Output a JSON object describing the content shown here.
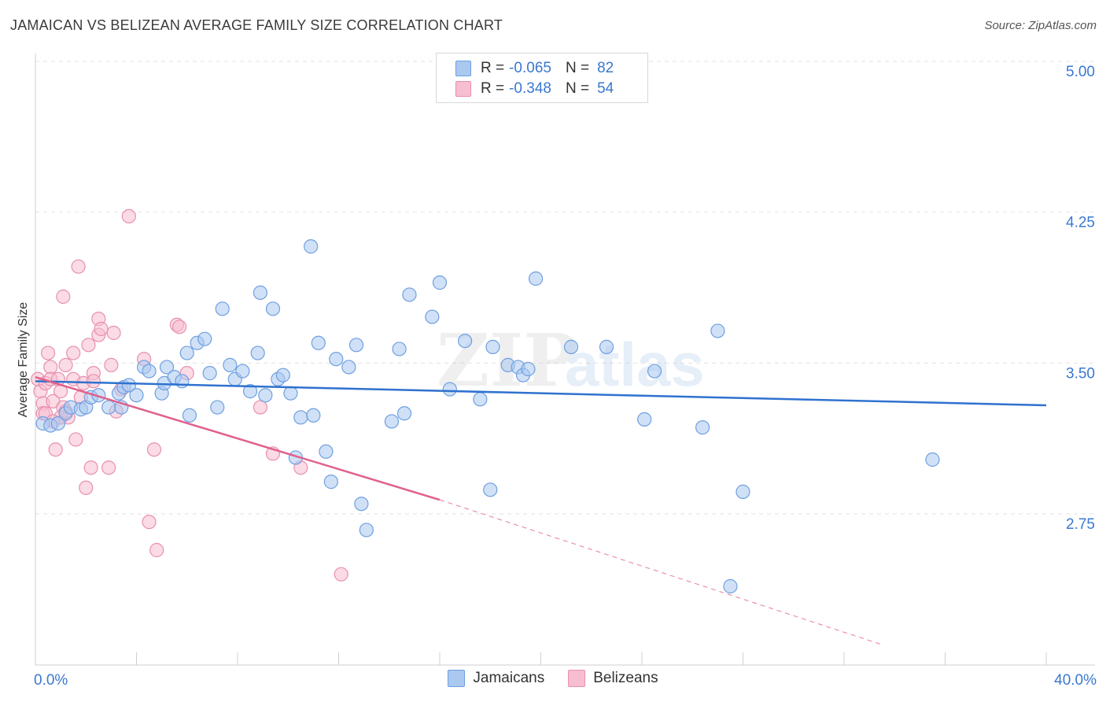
{
  "title": "JAMAICAN VS BELIZEAN AVERAGE FAMILY SIZE CORRELATION CHART",
  "source": "Source: ZipAtlas.com",
  "watermark": {
    "zip": "ZIP",
    "atlas": "atlas"
  },
  "legend": {
    "r_label": "R =",
    "n_label": "N =",
    "rows": [
      {
        "name": "Jamaicans",
        "r": "-0.065",
        "n": "82"
      },
      {
        "name": "Belizeans",
        "r": "-0.348",
        "n": "54"
      }
    ]
  },
  "colors": {
    "jamaicans_fill": "#aac8f0",
    "jamaicans_stroke": "#6f9fe0",
    "jamaicans_line": "#2f72cf",
    "belizeans_fill": "#f7bdd0",
    "belizeans_stroke": "#e890ae",
    "belizeans_line": "#e0608c",
    "axis_label": "#3b78d0"
  },
  "chart_data": {
    "type": "scatter",
    "title": "JAMAICAN VS BELIZEAN AVERAGE FAMILY SIZE CORRELATION CHART",
    "xlabel": "",
    "ylabel": "Average Family Size",
    "xlim": [
      0,
      40
    ],
    "ylim": [
      2.0,
      5.1
    ],
    "x_tick_labels": [
      "0.0%",
      "40.0%"
    ],
    "y_ticks": [
      2.75,
      3.5,
      4.25,
      5.0
    ],
    "y_tick_labels": [
      "2.75",
      "3.50",
      "4.25",
      "5.00"
    ],
    "grid": true,
    "series": [
      {
        "name": "Jamaicans",
        "r": -0.065,
        "n": 82,
        "trend": {
          "x": [
            0,
            40
          ],
          "y": [
            3.41,
            3.29
          ]
        },
        "points": [
          [
            0.3,
            3.2
          ],
          [
            0.6,
            3.19
          ],
          [
            0.9,
            3.2
          ],
          [
            1.2,
            3.25
          ],
          [
            1.4,
            3.28
          ],
          [
            1.8,
            3.27
          ],
          [
            2.0,
            3.28
          ],
          [
            2.2,
            3.33
          ],
          [
            2.5,
            3.34
          ],
          [
            2.9,
            3.28
          ],
          [
            3.3,
            3.35
          ],
          [
            3.4,
            3.28
          ],
          [
            3.5,
            3.38
          ],
          [
            3.7,
            3.39
          ],
          [
            4.0,
            3.34
          ],
          [
            4.3,
            3.48
          ],
          [
            4.5,
            3.46
          ],
          [
            5.0,
            3.35
          ],
          [
            5.1,
            3.4
          ],
          [
            5.2,
            3.48
          ],
          [
            5.5,
            3.43
          ],
          [
            5.8,
            3.41
          ],
          [
            6.1,
            3.24
          ],
          [
            6.0,
            3.55
          ],
          [
            6.4,
            3.6
          ],
          [
            6.7,
            3.62
          ],
          [
            6.9,
            3.45
          ],
          [
            7.2,
            3.28
          ],
          [
            7.4,
            3.77
          ],
          [
            7.7,
            3.49
          ],
          [
            7.9,
            3.42
          ],
          [
            8.2,
            3.46
          ],
          [
            8.5,
            3.36
          ],
          [
            8.8,
            3.55
          ],
          [
            8.9,
            3.85
          ],
          [
            9.1,
            3.34
          ],
          [
            9.4,
            3.77
          ],
          [
            9.6,
            3.42
          ],
          [
            9.8,
            3.44
          ],
          [
            10.1,
            3.35
          ],
          [
            10.3,
            3.03
          ],
          [
            10.5,
            3.23
          ],
          [
            10.9,
            4.08
          ],
          [
            11.0,
            3.24
          ],
          [
            11.2,
            3.6
          ],
          [
            11.5,
            3.06
          ],
          [
            11.7,
            2.91
          ],
          [
            11.9,
            3.52
          ],
          [
            12.4,
            3.48
          ],
          [
            12.7,
            3.59
          ],
          [
            12.9,
            2.8
          ],
          [
            13.1,
            2.67
          ],
          [
            14.1,
            3.21
          ],
          [
            14.4,
            3.57
          ],
          [
            14.6,
            3.25
          ],
          [
            14.8,
            3.84
          ],
          [
            15.7,
            3.73
          ],
          [
            16.0,
            3.9
          ],
          [
            16.4,
            3.37
          ],
          [
            17.0,
            3.61
          ],
          [
            17.6,
            3.32
          ],
          [
            18.0,
            2.87
          ],
          [
            18.1,
            3.58
          ],
          [
            18.7,
            3.49
          ],
          [
            19.1,
            3.48
          ],
          [
            19.3,
            3.44
          ],
          [
            19.5,
            3.47
          ],
          [
            19.8,
            3.92
          ],
          [
            21.2,
            3.58
          ],
          [
            22.6,
            3.58
          ],
          [
            24.1,
            3.22
          ],
          [
            24.5,
            3.46
          ],
          [
            26.4,
            3.18
          ],
          [
            27.0,
            3.66
          ],
          [
            28.0,
            2.86
          ],
          [
            27.5,
            2.39
          ],
          [
            35.5,
            3.02
          ]
        ]
      },
      {
        "name": "Belizeans",
        "r": -0.348,
        "n": 54,
        "trend": {
          "x": [
            0,
            16
          ],
          "y": [
            3.43,
            2.82
          ]
        },
        "trend_dashed": {
          "x": [
            16,
            33.5
          ],
          "y": [
            2.82,
            2.1
          ]
        },
        "points": [
          [
            0.1,
            3.42
          ],
          [
            0.2,
            3.36
          ],
          [
            0.3,
            3.3
          ],
          [
            0.3,
            3.25
          ],
          [
            0.4,
            3.4
          ],
          [
            0.5,
            3.55
          ],
          [
            0.6,
            3.48
          ],
          [
            0.6,
            3.42
          ],
          [
            0.7,
            3.31
          ],
          [
            0.8,
            3.07
          ],
          [
            0.9,
            3.42
          ],
          [
            1.0,
            3.36
          ],
          [
            1.1,
            3.83
          ],
          [
            1.1,
            3.28
          ],
          [
            1.2,
            3.49
          ],
          [
            1.3,
            3.23
          ],
          [
            1.5,
            3.42
          ],
          [
            1.5,
            3.55
          ],
          [
            1.6,
            3.12
          ],
          [
            1.7,
            3.98
          ],
          [
            1.8,
            3.33
          ],
          [
            1.9,
            3.4
          ],
          [
            2.0,
            2.88
          ],
          [
            2.1,
            3.59
          ],
          [
            2.2,
            2.98
          ],
          [
            2.3,
            3.45
          ],
          [
            2.5,
            3.72
          ],
          [
            2.5,
            3.64
          ],
          [
            2.6,
            3.67
          ],
          [
            2.9,
            2.98
          ],
          [
            3.0,
            3.49
          ],
          [
            3.1,
            3.65
          ],
          [
            3.2,
            3.26
          ],
          [
            3.4,
            3.37
          ],
          [
            3.7,
            4.23
          ],
          [
            4.3,
            3.52
          ],
          [
            4.5,
            2.71
          ],
          [
            4.7,
            3.07
          ],
          [
            4.8,
            2.57
          ],
          [
            5.6,
            3.69
          ],
          [
            5.7,
            3.68
          ],
          [
            6.0,
            3.45
          ],
          [
            8.9,
            3.28
          ],
          [
            9.4,
            3.05
          ],
          [
            10.5,
            2.98
          ],
          [
            12.1,
            2.45
          ],
          [
            0.4,
            3.25
          ],
          [
            1.0,
            3.23
          ],
          [
            0.7,
            3.21
          ],
          [
            1.2,
            3.26
          ],
          [
            2.3,
            3.41
          ]
        ]
      }
    ]
  }
}
